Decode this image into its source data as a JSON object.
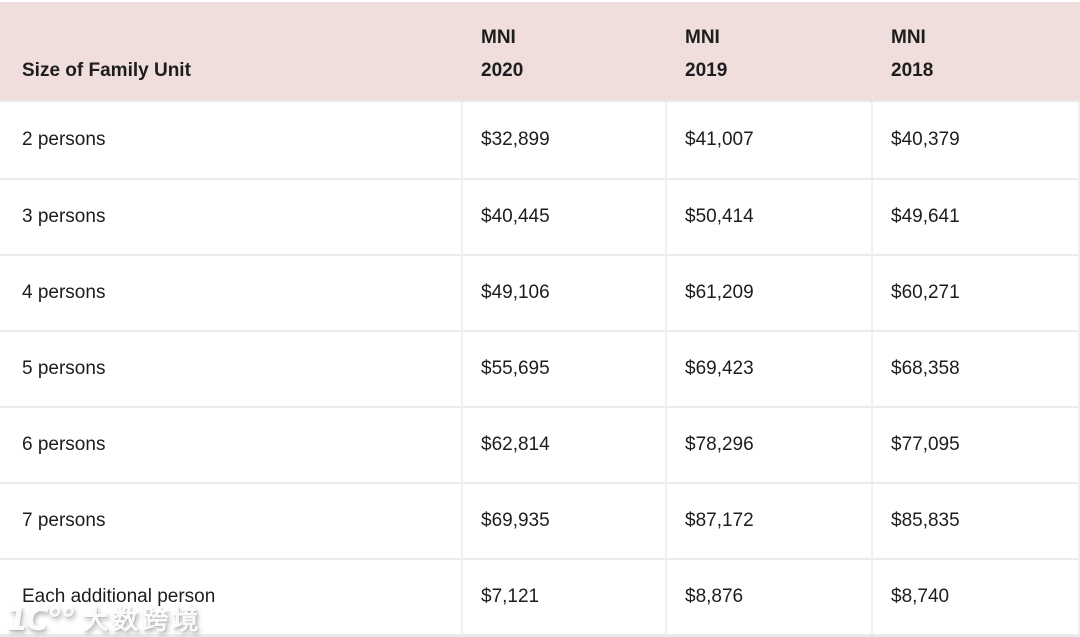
{
  "table": {
    "header": {
      "col1": "Size of Family Unit",
      "col2": {
        "line1": "MNI",
        "line2": "2020"
      },
      "col3": {
        "line1": "MNI",
        "line2": "2019"
      },
      "col4": {
        "line1": "MNI",
        "line2": "2018"
      }
    },
    "rows": [
      {
        "label": "2 persons",
        "values": [
          "$32,899",
          "$41,007",
          "$40,379"
        ]
      },
      {
        "label": "3 persons",
        "values": [
          "$40,445",
          "$50,414",
          "$49,641"
        ]
      },
      {
        "label": "4 persons",
        "values": [
          "$49,106",
          "$61,209",
          "$60,271"
        ]
      },
      {
        "label": "5 persons",
        "values": [
          "$55,695",
          "$69,423",
          "$68,358"
        ]
      },
      {
        "label": "6 persons",
        "values": [
          "$62,814",
          "$78,296",
          "$77,095"
        ]
      },
      {
        "label": "7 persons",
        "values": [
          "$69,935",
          "$87,172",
          "$85,835"
        ]
      },
      {
        "label": "Each additional person",
        "values": [
          "$7,121",
          "$8,876",
          "$8,740"
        ]
      }
    ]
  },
  "watermark": {
    "logo": "1C°°",
    "brand": "大数跨境"
  },
  "colors": {
    "header_bg": "#efdedb",
    "text": "#1d1d1f",
    "row_bg": "#ffffff",
    "separator": "#e9eced",
    "bottom_strip": "#e4e8ec"
  }
}
